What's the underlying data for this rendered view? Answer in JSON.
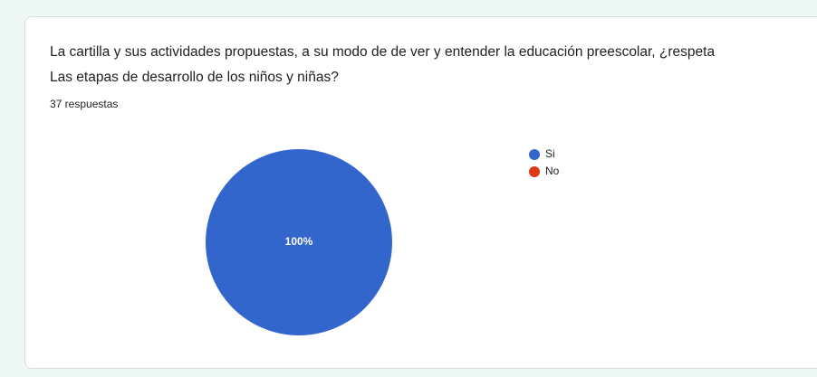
{
  "chart_data": {
    "type": "pie",
    "title": "La cartilla y sus actividades propuestas, a su modo de de ver y entender la educación preescolar, ¿respeta Las etapas de desarrollo de los niños y niñas?",
    "subtitle": "37 respuestas",
    "categories": [
      "Si",
      "No"
    ],
    "values": [
      100,
      0
    ],
    "value_labels": [
      "100%",
      null
    ],
    "colors": [
      "#3366cc",
      "#dc3912"
    ],
    "legend": "right"
  }
}
